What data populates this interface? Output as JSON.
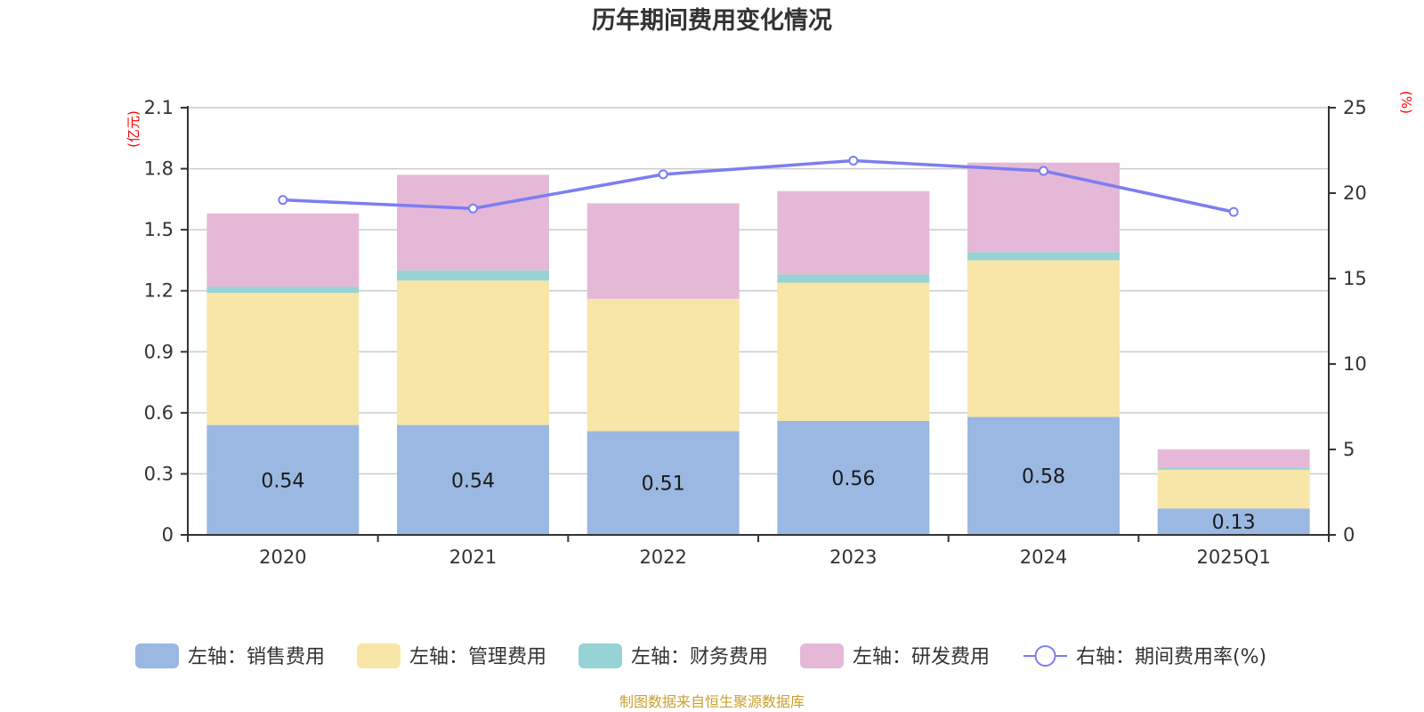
{
  "chart_data": {
    "type": "bar",
    "stacked": true,
    "title": "历年期间费用变化情况",
    "categories": [
      "2020",
      "2021",
      "2022",
      "2023",
      "2024",
      "2025Q1"
    ],
    "left_axis": {
      "unit_label": "(亿元)",
      "ylim": [
        0,
        2.1
      ],
      "ticks": [
        0,
        0.3,
        0.6,
        0.9,
        1.2,
        1.5,
        1.8,
        2.1
      ],
      "tick_labels": [
        "0",
        "0.3",
        "0.6",
        "0.9",
        "1.2",
        "1.5",
        "1.8",
        "2.1"
      ]
    },
    "right_axis": {
      "unit_label": "(%)",
      "ylim": [
        0,
        25
      ],
      "ticks": [
        0,
        5,
        10,
        15,
        20,
        25
      ],
      "tick_labels": [
        "0",
        "5",
        "10",
        "15",
        "20",
        "25"
      ]
    },
    "grid": true,
    "series": [
      {
        "name": "左轴：销售费用",
        "type": "bar",
        "axis": "left",
        "color": "#9ab8e1",
        "values": [
          0.54,
          0.54,
          0.51,
          0.56,
          0.58,
          0.13
        ],
        "data_labels": [
          "0.54",
          "0.54",
          "0.51",
          "0.56",
          "0.58",
          "0.13"
        ]
      },
      {
        "name": "左轴：管理费用",
        "type": "bar",
        "axis": "left",
        "color": "#f8e6a8",
        "values": [
          0.65,
          0.71,
          0.65,
          0.68,
          0.77,
          0.19
        ]
      },
      {
        "name": "左轴：财务费用",
        "type": "bar",
        "axis": "left",
        "color": "#97d3d4",
        "values": [
          0.03,
          0.05,
          0.0,
          0.04,
          0.04,
          0.01
        ]
      },
      {
        "name": "左轴：研发费用",
        "type": "bar",
        "axis": "left",
        "color": "#e6b8d8",
        "values": [
          0.36,
          0.47,
          0.47,
          0.41,
          0.44,
          0.09
        ]
      },
      {
        "name": "右轴：期间费用率(%)",
        "type": "line",
        "axis": "right",
        "color": "#7b7ef0",
        "values": [
          19.6,
          19.1,
          21.1,
          21.9,
          21.3,
          18.9
        ]
      }
    ],
    "legend_position": "bottom"
  },
  "source_note": "制图数据来自恒生聚源数据库"
}
